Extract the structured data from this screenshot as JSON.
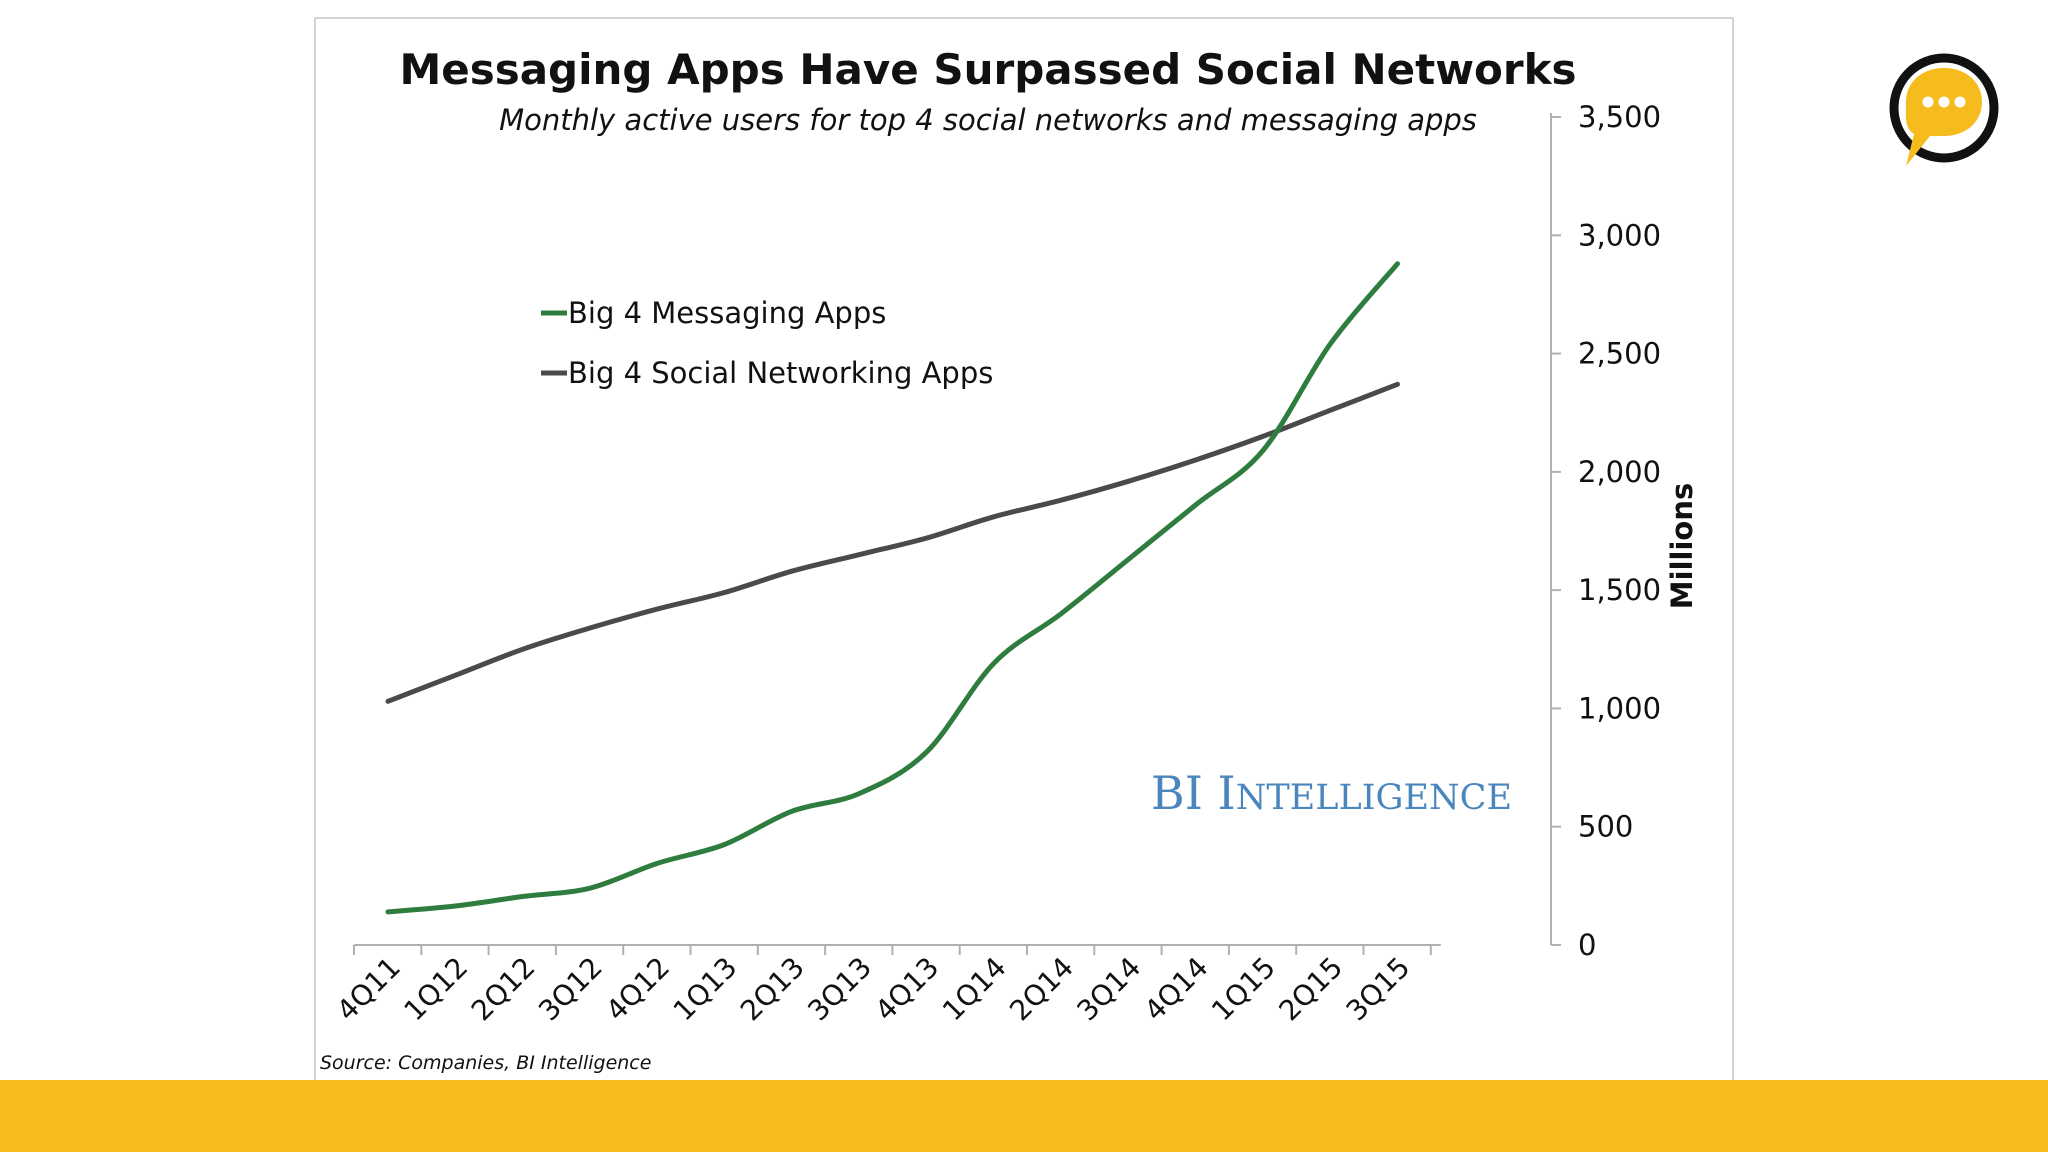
{
  "colors": {
    "messaging": "#2e7d3f",
    "social": "#4a4a4a",
    "axis": "#b0b0b0",
    "footer": "#f6bb1c",
    "watermark": "#4a86be",
    "logo_fill": "#f6bb1c",
    "logo_ring": "#111111"
  },
  "logo": {
    "icon": "chat-bubble-icon"
  },
  "watermark": {
    "text_part1": "BI I",
    "text_part2": "NTELLIGENCE"
  },
  "chart_data": {
    "type": "line",
    "title": "Messaging Apps Have Surpassed Social Networks",
    "subtitle": "Monthly active users for top 4 social networks and messaging apps",
    "xlabel": "",
    "ylabel": "Millions",
    "ylim": [
      0,
      3500
    ],
    "y_ticks": [
      0,
      500,
      1000,
      1500,
      2000,
      2500,
      3000,
      3500
    ],
    "y_tick_labels": [
      "0",
      "500",
      "1,000",
      "1,500",
      "2,000",
      "2,500",
      "3,000",
      "3,500"
    ],
    "categories": [
      "4Q11",
      "1Q12",
      "2Q12",
      "3Q12",
      "4Q12",
      "1Q13",
      "2Q13",
      "3Q13",
      "4Q13",
      "1Q14",
      "2Q14",
      "3Q14",
      "4Q14",
      "1Q15",
      "2Q15",
      "3Q15"
    ],
    "series": [
      {
        "name": "Big 4 Messaging Apps",
        "color_key": "messaging",
        "values": [
          140,
          165,
          205,
          240,
          345,
          425,
          565,
          640,
          815,
          1190,
          1400,
          1630,
          1860,
          2090,
          2540,
          2880
        ]
      },
      {
        "name": "Big 4 Social Networking Apps",
        "color_key": "social",
        "values": [
          1030,
          1140,
          1250,
          1340,
          1420,
          1490,
          1580,
          1650,
          1720,
          1810,
          1880,
          1960,
          2050,
          2150,
          2260,
          2370
        ]
      }
    ],
    "legend_position": "top-left",
    "source": "Source: Companies, BI Intelligence"
  }
}
